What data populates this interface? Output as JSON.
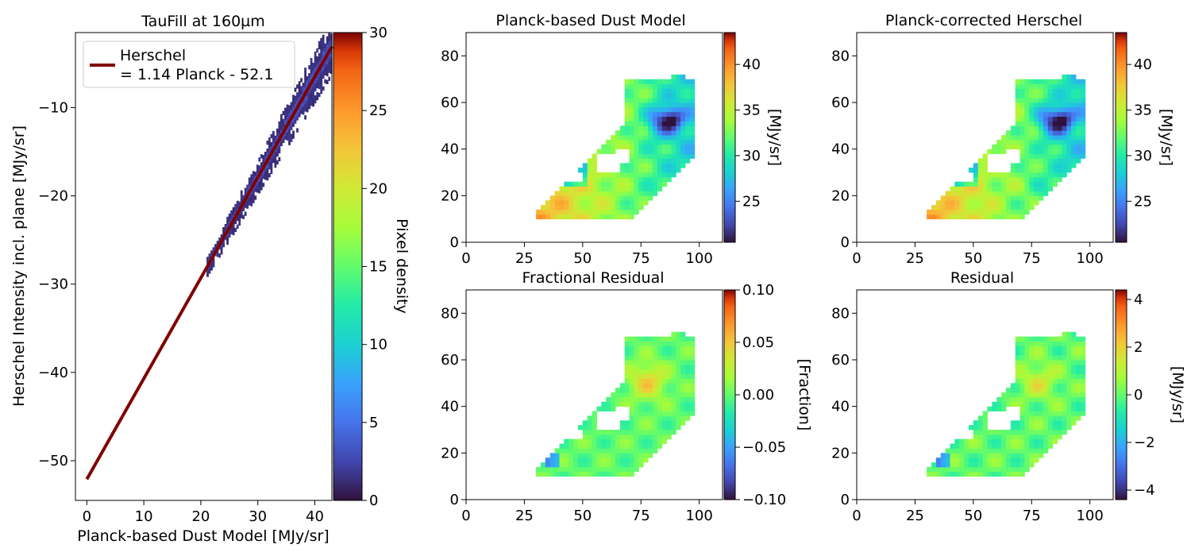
{
  "chart_data": [
    {
      "type": "scatter",
      "title": "TauFill at 160µm",
      "xlabel": "Planck-based Dust Model [MJy/sr]",
      "ylabel": "Herschel Intensity incl. plane [MJy/sr]",
      "xlim": [
        -2,
        43
      ],
      "ylim": [
        -54.5,
        -1.5
      ],
      "xticks": [
        "0",
        "10",
        "20",
        "30",
        "40"
      ],
      "yticks": [
        "−50",
        "−40",
        "−30",
        "−20",
        "−10"
      ],
      "colorbar": {
        "label": "Pixel density",
        "range": [
          0,
          30
        ],
        "ticks": [
          "0",
          "5",
          "10",
          "15",
          "20",
          "25",
          "30"
        ],
        "colormap": "turbo"
      },
      "fit_line": {
        "slope": 1.14,
        "intercept": -52.1,
        "x_range": [
          0,
          43
        ],
        "color": "#800000"
      },
      "legend": {
        "line1": "Herschel",
        "line2": "= 1.14 Planck - 52.1",
        "position": "upper-left"
      },
      "density_band": {
        "x_range": [
          21,
          43
        ],
        "core_density": 2
      }
    },
    {
      "type": "heatmap",
      "title": "Planck-based Dust Model",
      "xlim": [
        0,
        110
      ],
      "ylim": [
        0,
        90
      ],
      "xticks": [
        "0",
        "25",
        "50",
        "75",
        "100"
      ],
      "yticks": [
        "0",
        "20",
        "40",
        "60",
        "80"
      ],
      "colorbar": {
        "label": "[MJy/sr]",
        "range": [
          20.5,
          43.5
        ],
        "ticks": [
          "25",
          "30",
          "35",
          "40"
        ],
        "colormap": "turbo"
      }
    },
    {
      "type": "heatmap",
      "title": "Planck-corrected Herschel",
      "xlim": [
        0,
        110
      ],
      "ylim": [
        0,
        90
      ],
      "xticks": [
        "0",
        "25",
        "50",
        "75",
        "100"
      ],
      "yticks": [
        "0",
        "20",
        "40",
        "60",
        "80"
      ],
      "colorbar": {
        "label": "[MJy/sr]",
        "range": [
          20.5,
          43.5
        ],
        "ticks": [
          "25",
          "30",
          "35",
          "40"
        ],
        "colormap": "turbo"
      }
    },
    {
      "type": "heatmap",
      "title": "Fractional Residual",
      "xlim": [
        0,
        110
      ],
      "ylim": [
        0,
        90
      ],
      "xticks": [
        "0",
        "25",
        "50",
        "75",
        "100"
      ],
      "yticks": [
        "0",
        "20",
        "40",
        "60",
        "80"
      ],
      "colorbar": {
        "label": "[Fraction]",
        "range": [
          -0.1,
          0.1
        ],
        "ticks": [
          "−0.10",
          "−0.05",
          "0.00",
          "0.05",
          "0.10"
        ],
        "colormap": "turbo"
      }
    },
    {
      "type": "heatmap",
      "title": "Residual",
      "xlim": [
        0,
        110
      ],
      "ylim": [
        0,
        90
      ],
      "xticks": [
        "0",
        "25",
        "50",
        "75",
        "100"
      ],
      "yticks": [
        "0",
        "20",
        "40",
        "60",
        "80"
      ],
      "colorbar": {
        "label": "[MJy/sr]",
        "range": [
          -4.4,
          4.4
        ],
        "ticks": [
          "−4",
          "−2",
          "0",
          "2",
          "4"
        ],
        "colormap": "turbo"
      }
    }
  ]
}
